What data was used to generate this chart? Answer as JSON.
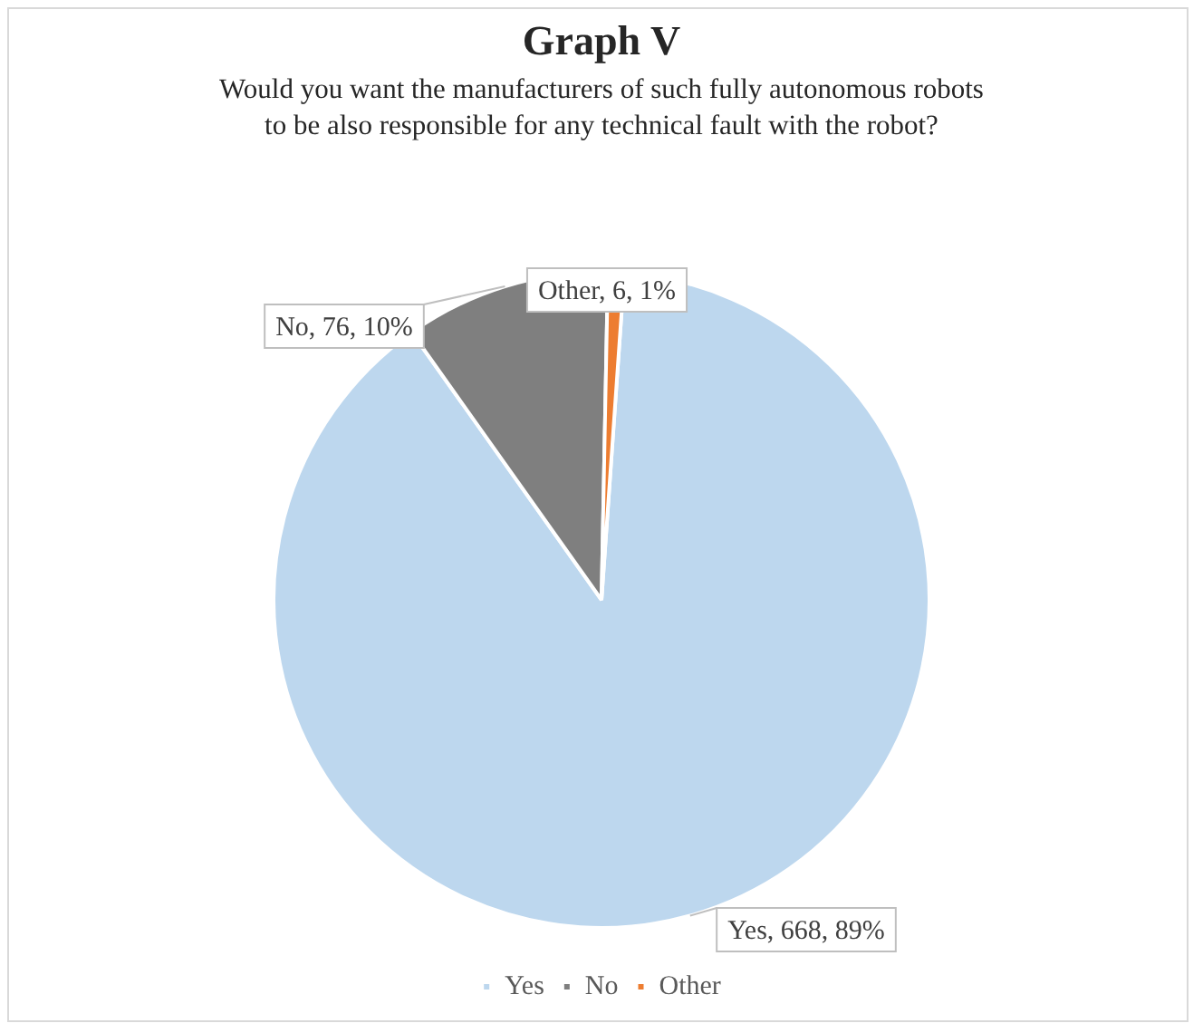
{
  "chart_data": {
    "type": "pie",
    "title": "Graph V",
    "subtitle": "Would you want the manufacturers of such fully autonomous robots\nto be also responsible for any technical fault with the robot?",
    "categories": [
      "Yes",
      "No",
      "Other"
    ],
    "values": [
      668,
      76,
      6
    ],
    "colors": [
      "#bdd7ee",
      "#7f7f7f",
      "#ed7d31"
    ],
    "value_labels": [
      "Yes, 668, 89%",
      "No, 76, 10%",
      "Other, 6, 1%"
    ],
    "legend": "bottom"
  }
}
